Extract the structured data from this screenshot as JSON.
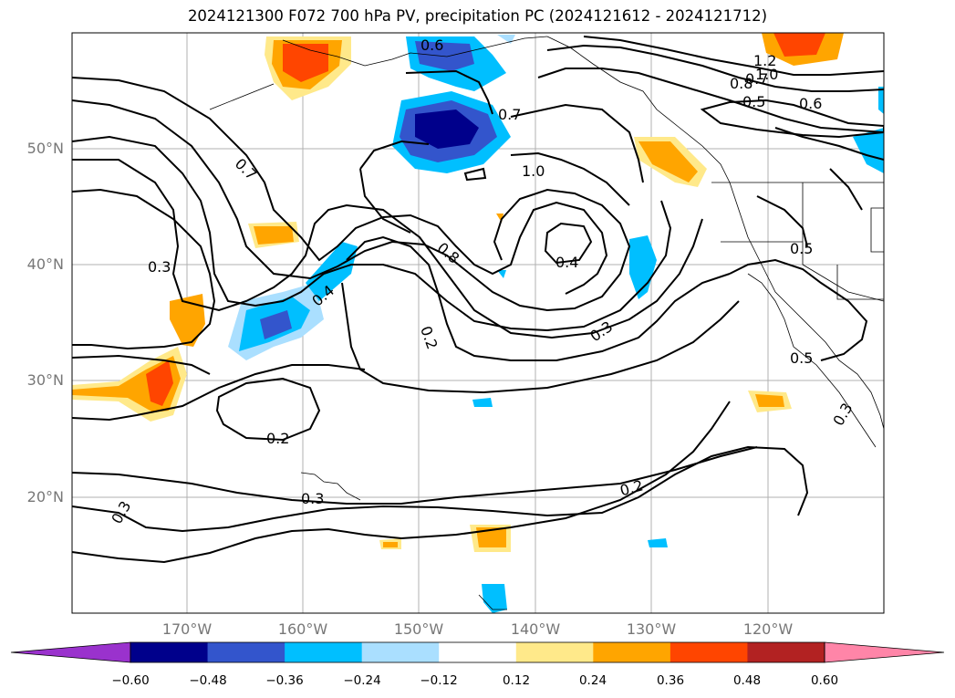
{
  "title": "2024121300 F072 700 hPa PV, precipitation PC (2024121612 - 2024121712)",
  "map": {
    "lat_ticks": [
      "50°N",
      "40°N",
      "30°N",
      "20°N"
    ],
    "lon_ticks": [
      "170°W",
      "160°W",
      "150°W",
      "140°W",
      "130°W",
      "120°W"
    ],
    "contour_labels": [
      "0.6",
      "0.7",
      "1.0",
      "0.8",
      "0.4",
      "0.7",
      "0.3",
      "0.4",
      "0.2",
      "0.3",
      "0.2",
      "0.3",
      "0.3",
      "0.2",
      "0.5",
      "0.5",
      "0.3",
      "1.2",
      "1.0",
      "0.8",
      "0.7",
      "0.5",
      "0.6"
    ]
  },
  "colorbar": {
    "ticks": [
      "−0.60",
      "−0.48",
      "−0.36",
      "−0.24",
      "−0.12",
      "0.12",
      "0.24",
      "0.36",
      "0.48",
      "0.60"
    ],
    "colors": [
      "#9a32cd",
      "#00008b",
      "#3355cc",
      "#00bfff",
      "#aadfff",
      "#ffffff",
      "#ffe98a",
      "#ffa500",
      "#ff4500",
      "#b22222",
      "#ff85a8"
    ]
  }
}
